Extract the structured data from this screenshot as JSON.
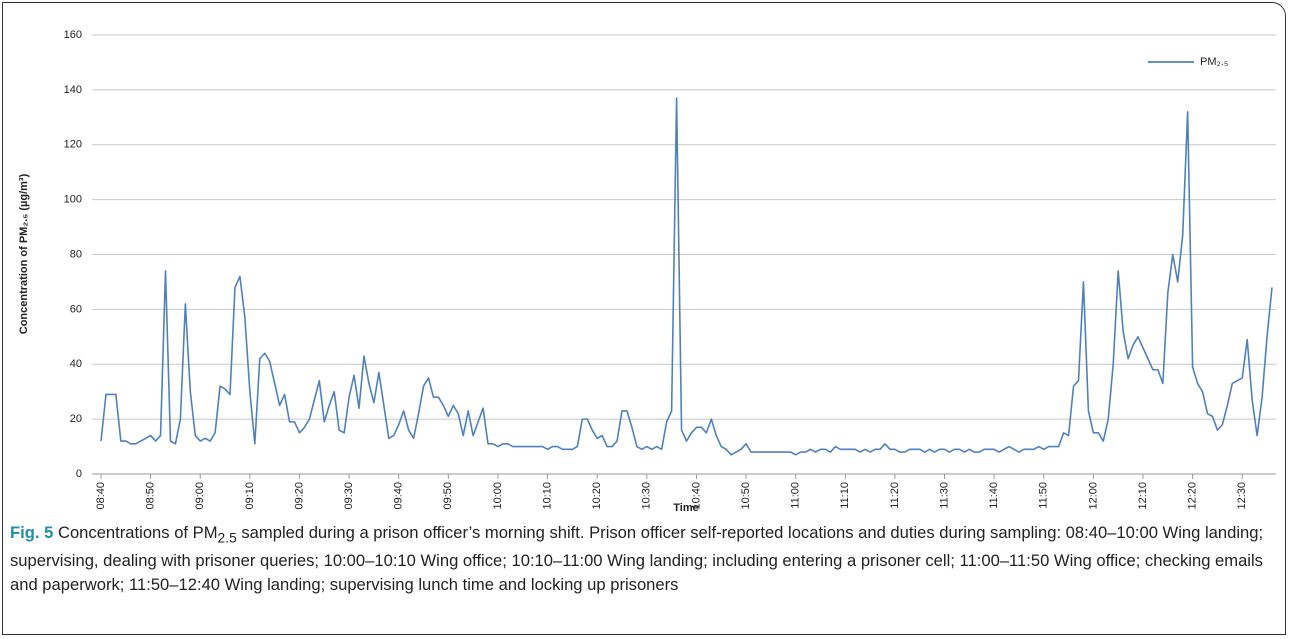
{
  "chart_data": {
    "type": "line",
    "y_label": "Concentration of PM₂.₅ (µg/m³)",
    "x_label": "Time",
    "categories": [
      "08:40",
      null,
      null,
      null,
      null,
      null,
      null,
      null,
      null,
      null,
      "08:50",
      null,
      null,
      null,
      null,
      null,
      null,
      null,
      null,
      null,
      "09:00",
      null,
      null,
      null,
      null,
      null,
      null,
      null,
      null,
      null,
      "09:10",
      null,
      null,
      null,
      null,
      null,
      null,
      null,
      null,
      null,
      "09:20",
      null,
      null,
      null,
      null,
      null,
      null,
      null,
      null,
      null,
      "09:30",
      null,
      null,
      null,
      null,
      null,
      null,
      null,
      null,
      null,
      "09:40",
      null,
      null,
      null,
      null,
      null,
      null,
      null,
      null,
      null,
      "09:50",
      null,
      null,
      null,
      null,
      null,
      null,
      null,
      null,
      null,
      "10:00",
      null,
      null,
      null,
      null,
      null,
      null,
      null,
      null,
      null,
      "10:10",
      null,
      null,
      null,
      null,
      null,
      null,
      null,
      null,
      null,
      "10:20",
      null,
      null,
      null,
      null,
      null,
      null,
      null,
      null,
      null,
      "10:30",
      null,
      null,
      null,
      null,
      null,
      null,
      null,
      null,
      null,
      "10:40",
      null,
      null,
      null,
      null,
      null,
      null,
      null,
      null,
      null,
      "10:50",
      null,
      null,
      null,
      null,
      null,
      null,
      null,
      null,
      null,
      "11:00",
      null,
      null,
      null,
      null,
      null,
      null,
      null,
      null,
      null,
      "11:10",
      null,
      null,
      null,
      null,
      null,
      null,
      null,
      null,
      null,
      "11:20",
      null,
      null,
      null,
      null,
      null,
      null,
      null,
      null,
      null,
      "11:30",
      null,
      null,
      null,
      null,
      null,
      null,
      null,
      null,
      null,
      "11:40",
      null,
      null,
      null,
      null,
      null,
      null,
      null,
      null,
      null,
      "11:50",
      null,
      null,
      null,
      null,
      null,
      null,
      null,
      null,
      null,
      "12:00",
      null,
      null,
      null,
      null,
      null,
      null,
      null,
      null,
      null,
      "12:10",
      null,
      null,
      null,
      null,
      null,
      null,
      null,
      null,
      null,
      "12:20",
      null,
      null,
      null,
      null,
      null,
      null,
      null,
      null,
      null,
      "12:30",
      null,
      null,
      null,
      null,
      null,
      null
    ],
    "series": [
      {
        "name": "PM₂.₅",
        "color": "#4f81bd",
        "values": [
          12,
          29,
          29,
          29,
          12,
          12,
          11,
          11,
          12,
          13,
          14,
          12,
          14,
          74,
          12,
          11,
          20,
          62,
          30,
          14,
          12,
          13,
          12,
          15,
          32,
          31,
          29,
          68,
          72,
          57,
          30,
          11,
          42,
          44,
          41,
          33,
          25,
          29,
          19,
          19,
          15,
          17,
          20,
          27,
          34,
          19,
          25,
          30,
          16,
          15,
          28,
          36,
          24,
          43,
          33,
          26,
          37,
          25,
          13,
          14,
          18,
          23,
          16,
          13,
          22,
          32,
          35,
          28,
          28,
          25,
          21,
          25,
          22,
          14,
          23,
          14,
          19,
          24,
          11,
          11,
          10,
          11,
          11,
          10,
          10,
          10,
          10,
          10,
          10,
          10,
          9,
          10,
          10,
          9,
          9,
          9,
          10,
          20,
          20,
          16,
          13,
          14,
          10,
          10,
          12,
          23,
          23,
          17,
          10,
          9,
          10,
          9,
          10,
          9,
          19,
          23,
          137,
          16,
          12,
          15,
          17,
          17,
          15,
          20,
          14,
          10,
          9,
          7,
          8,
          9,
          11,
          8,
          8,
          8,
          8,
          8,
          8,
          8,
          8,
          8,
          7,
          8,
          8,
          9,
          8,
          9,
          9,
          8,
          10,
          9,
          9,
          9,
          9,
          8,
          9,
          8,
          9,
          9,
          11,
          9,
          9,
          8,
          8,
          9,
          9,
          9,
          8,
          9,
          8,
          9,
          9,
          8,
          9,
          9,
          8,
          9,
          8,
          8,
          9,
          9,
          9,
          8,
          9,
          10,
          9,
          8,
          9,
          9,
          9,
          10,
          9,
          10,
          10,
          10,
          15,
          14,
          32,
          34,
          70,
          23,
          15,
          15,
          12,
          20,
          40,
          74,
          52,
          42,
          47,
          50,
          46,
          42,
          38,
          38,
          33,
          66,
          80,
          70,
          87,
          132,
          39,
          33,
          30,
          22,
          21,
          16,
          18,
          25,
          33,
          34,
          35,
          49,
          27,
          14,
          28,
          50,
          68
        ]
      }
    ],
    "ylim": [
      0,
      160
    ],
    "yticks": [
      0,
      20,
      40,
      60,
      80,
      100,
      120,
      140,
      160
    ],
    "grid": true,
    "legend": "top-right"
  },
  "caption": {
    "label": "Fig. 5",
    "before": "Concentrations of PM",
    "sub": "2.5",
    "after": " sampled during a prison officer’s morning shift. Prison officer self-reported locations and duties during sampling: 08:40–10:00 Wing landing; supervising, dealing with prisoner queries; 10:00–10:10 Wing office; 10:10–11:00 Wing landing; including entering a prisoner cell; 11:00–11:50 Wing office; checking emails and paperwork; 11:50–12:40 Wing landing; supervising lunch time and locking up prisoners"
  }
}
